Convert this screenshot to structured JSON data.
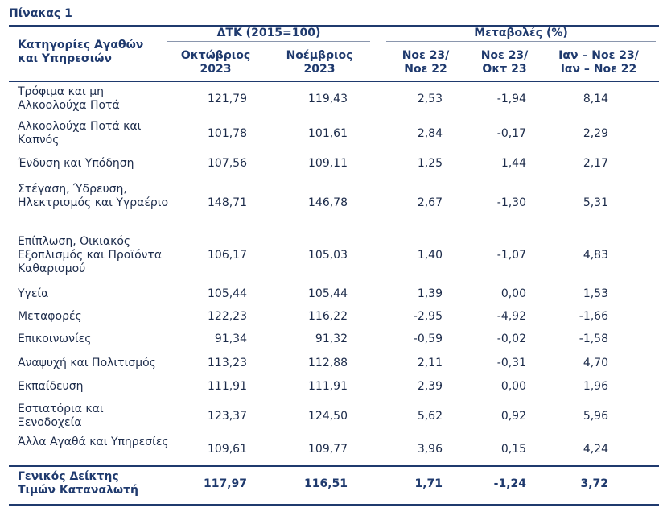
{
  "table": {
    "title": "Πίνακας 1",
    "header": {
      "category": "Κατηγορίες Αγαθών και Υπηρεσιών",
      "group_index": "ΔΤΚ (2015=100)",
      "group_change": "Μεταβολές (%)",
      "col_oct": "Οκτώβριος 2023",
      "col_nov": "Νοέμβριος 2023",
      "col_yoy": "Νοε 23/ Νοε 22",
      "col_mom": "Νοε 23/ Οκτ 23",
      "col_ytd": "Ιαν – Νοε 23/ Ιαν – Νοε 22"
    },
    "rows": [
      {
        "category": "Τρόφιμα και μη Αλκοολούχα Ποτά",
        "oct": "121,79",
        "nov": "119,43",
        "yoy": "2,53",
        "mom": "-1,94",
        "ytd": "8,14"
      },
      {
        "category": "Αλκοολούχα Ποτά και Καπνός",
        "oct": "101,78",
        "nov": "101,61",
        "yoy": "2,84",
        "mom": "-0,17",
        "ytd": "2,29"
      },
      {
        "category": "Ένδυση και Υπόδηση",
        "oct": "107,56",
        "nov": "109,11",
        "yoy": "1,25",
        "mom": "1,44",
        "ytd": "2,17"
      },
      {
        "category": "Στέγαση, Ύδρευση, Ηλεκτρισμός και Υγραέριο",
        "oct": "148,71",
        "nov": "146,78",
        "yoy": "2,67",
        "mom": "-1,30",
        "ytd": "5,31"
      },
      {
        "category": "Επίπλωση, Οικιακός Εξοπλισμός και Προϊόντα Καθαρισμού",
        "oct": "106,17",
        "nov": "105,03",
        "yoy": "1,40",
        "mom": "-1,07",
        "ytd": "4,83"
      },
      {
        "category": "Υγεία",
        "oct": "105,44",
        "nov": "105,44",
        "yoy": "1,39",
        "mom": "0,00",
        "ytd": "1,53"
      },
      {
        "category": "Μεταφορές",
        "oct": "122,23",
        "nov": "116,22",
        "yoy": "-2,95",
        "mom": "-4,92",
        "ytd": "-1,66"
      },
      {
        "category": "Επικοινωνίες",
        "oct": "91,34",
        "nov": "91,32",
        "yoy": "-0,59",
        "mom": "-0,02",
        "ytd": "-1,58"
      },
      {
        "category": "Αναψυχή και Πολιτισμός",
        "oct": "113,23",
        "nov": "112,88",
        "yoy": "2,11",
        "mom": "-0,31",
        "ytd": "4,70"
      },
      {
        "category": "Εκπαίδευση",
        "oct": "111,91",
        "nov": "111,91",
        "yoy": "2,39",
        "mom": "0,00",
        "ytd": "1,96"
      },
      {
        "category": "Εστιατόρια και Ξενοδοχεία",
        "oct": "123,37",
        "nov": "124,50",
        "yoy": "5,62",
        "mom": "0,92",
        "ytd": "5,96"
      },
      {
        "category": "Άλλα Αγαθά και Υπηρεσίες",
        "oct": "109,61",
        "nov": "109,77",
        "yoy": "3,96",
        "mom": "0,15",
        "ytd": "4,24"
      }
    ],
    "total": {
      "category": "Γενικός Δείκτης Τιμών Καταναλωτή",
      "oct": "117,97",
      "nov": "116,51",
      "yoy": "1,71",
      "mom": "-1,24",
      "ytd": "3,72"
    }
  }
}
